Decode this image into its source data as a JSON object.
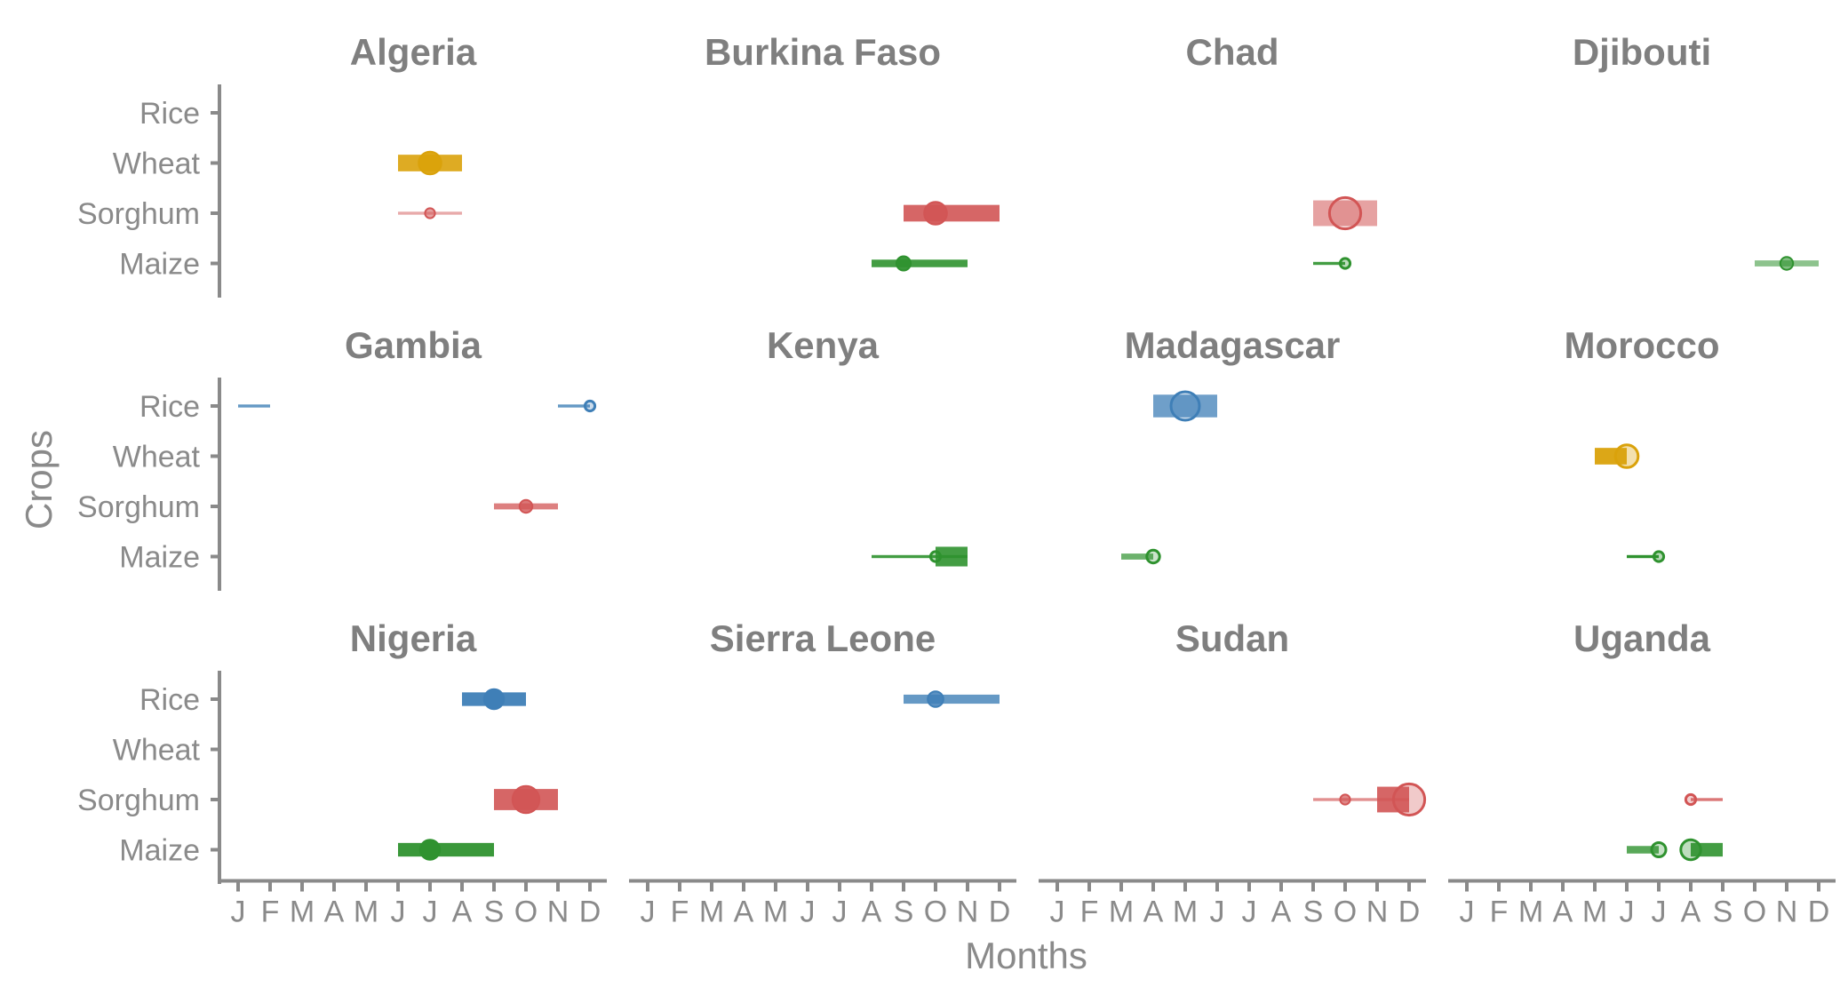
{
  "chart_data": {
    "type": "faceted-range",
    "xlabel": "Months",
    "ylabel": "Crops",
    "months": [
      "J",
      "F",
      "M",
      "A",
      "M",
      "J",
      "J",
      "A",
      "S",
      "O",
      "N",
      "D"
    ],
    "crops": [
      "Rice",
      "Wheat",
      "Sorghum",
      "Maize"
    ],
    "colors": {
      "Rice": "#3f7fb7",
      "Wheat": "#daa20b",
      "Sorghum": "#d25555",
      "Maize": "#2f922f"
    },
    "panels": [
      {
        "country": "Algeria",
        "marks": [
          {
            "crop": "Wheat",
            "start": 6,
            "end": 8,
            "point": 7,
            "weight": 0.55,
            "alpha": 0.9,
            "style": "dot"
          },
          {
            "crop": "Sorghum",
            "start": 6,
            "end": 8,
            "point": 7,
            "weight": 0.1,
            "alpha": 0.5,
            "style": "dot"
          }
        ]
      },
      {
        "country": "Burkina Faso",
        "marks": [
          {
            "crop": "Sorghum",
            "start": 9,
            "end": 12,
            "point": 10,
            "weight": 0.55,
            "alpha": 0.9,
            "style": "dot"
          },
          {
            "crop": "Maize",
            "start": 8,
            "end": 11,
            "point": 9,
            "weight": 0.25,
            "alpha": 0.9,
            "style": "dot"
          }
        ]
      },
      {
        "country": "Chad",
        "marks": [
          {
            "crop": "Sorghum",
            "start": 9,
            "end": 11,
            "point": 10,
            "weight": 0.85,
            "alpha": 0.55,
            "style": "ring"
          },
          {
            "crop": "Maize",
            "start": 9,
            "end": 10,
            "point": 10,
            "weight": 0.1,
            "alpha": 0.9,
            "style": "ring"
          }
        ]
      },
      {
        "country": "Djibouti",
        "marks": [
          {
            "crop": "Maize",
            "start": 10,
            "end": 12,
            "point": 11,
            "weight": 0.2,
            "alpha": 0.55,
            "style": "dot"
          }
        ]
      },
      {
        "country": "Gambia",
        "marks": [
          {
            "crop": "Rice",
            "start": 1,
            "end": 2,
            "point": null,
            "weight": 0.1,
            "alpha": 0.8,
            "style": "dot"
          },
          {
            "crop": "Rice",
            "start": 11,
            "end": 12,
            "point": 12,
            "weight": 0.1,
            "alpha": 0.8,
            "style": "ring"
          },
          {
            "crop": "Sorghum",
            "start": 9,
            "end": 11,
            "point": 10,
            "weight": 0.2,
            "alpha": 0.75,
            "style": "dot"
          }
        ]
      },
      {
        "country": "Kenya",
        "marks": [
          {
            "crop": "Maize",
            "start": 8,
            "end": 11,
            "point": 10,
            "weight": 0.1,
            "alpha": 0.9,
            "style": "ring"
          },
          {
            "crop": "Maize",
            "start": 10,
            "end": 11,
            "point": null,
            "weight": 0.65,
            "alpha": 0.9,
            "style": "dot"
          }
        ]
      },
      {
        "country": "Madagascar",
        "marks": [
          {
            "crop": "Rice",
            "start": 4,
            "end": 6,
            "point": 5,
            "weight": 0.75,
            "alpha": 0.75,
            "style": "ring"
          },
          {
            "crop": "Maize",
            "start": 3,
            "end": 4,
            "point": 4,
            "weight": 0.2,
            "alpha": 0.7,
            "style": "ring"
          }
        ]
      },
      {
        "country": "Morocco",
        "marks": [
          {
            "crop": "Wheat",
            "start": 5,
            "end": 6,
            "point": 6,
            "weight": 0.55,
            "alpha": 0.95,
            "style": "ring"
          },
          {
            "crop": "Maize",
            "start": 6,
            "end": 7,
            "point": 7,
            "weight": 0.1,
            "alpha": 1.0,
            "style": "ring"
          }
        ]
      },
      {
        "country": "Nigeria",
        "marks": [
          {
            "crop": "Rice",
            "start": 8,
            "end": 10,
            "point": 9,
            "weight": 0.45,
            "alpha": 0.95,
            "style": "dot"
          },
          {
            "crop": "Sorghum",
            "start": 9,
            "end": 11,
            "point": 10,
            "weight": 0.7,
            "alpha": 0.9,
            "style": "dot"
          },
          {
            "crop": "Maize",
            "start": 6,
            "end": 9,
            "point": 7,
            "weight": 0.45,
            "alpha": 0.95,
            "style": "dot"
          }
        ]
      },
      {
        "country": "Sierra Leone",
        "marks": [
          {
            "crop": "Rice",
            "start": 9,
            "end": 12,
            "point": 10,
            "weight": 0.3,
            "alpha": 0.8,
            "style": "dot"
          }
        ]
      },
      {
        "country": "Sudan",
        "marks": [
          {
            "crop": "Sorghum",
            "start": 9,
            "end": 12,
            "point": 10,
            "weight": 0.1,
            "alpha": 0.65,
            "style": "dot"
          },
          {
            "crop": "Sorghum",
            "start": 11,
            "end": 12,
            "point": 12,
            "weight": 0.85,
            "alpha": 0.9,
            "style": "ring"
          }
        ]
      },
      {
        "country": "Uganda",
        "marks": [
          {
            "crop": "Sorghum",
            "start": 8,
            "end": 9,
            "point": 8,
            "weight": 0.1,
            "alpha": 0.8,
            "style": "ring"
          },
          {
            "crop": "Maize",
            "start": 6,
            "end": 7,
            "point": 7,
            "weight": 0.25,
            "alpha": 0.8,
            "style": "ring"
          },
          {
            "crop": "Maize",
            "start": 8,
            "end": 9,
            "point": 8,
            "weight": 0.45,
            "alpha": 0.9,
            "style": "ring"
          }
        ]
      }
    ]
  }
}
